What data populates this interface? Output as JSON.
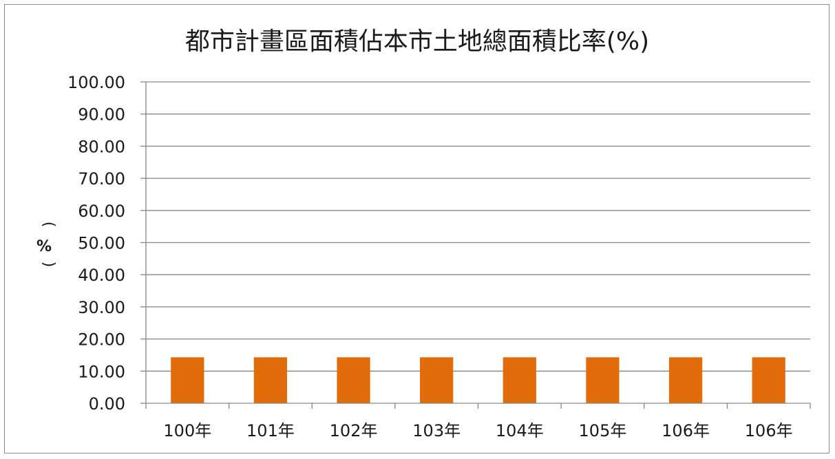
{
  "chart_data": {
    "type": "bar",
    "title": "都市計畫區面積佔本市土地總面積比率(%)",
    "ylabel": "%",
    "xlabel": "",
    "categories": [
      "100年",
      "101年",
      "102年",
      "103年",
      "104年",
      "105年",
      "106年",
      "106年"
    ],
    "values": [
      14.3,
      14.3,
      14.3,
      14.3,
      14.3,
      14.3,
      14.3,
      14.3
    ],
    "ylim": [
      0,
      100
    ],
    "yticks": [
      "0.00",
      "10.00",
      "20.00",
      "30.00",
      "40.00",
      "50.00",
      "60.00",
      "70.00",
      "80.00",
      "90.00",
      "100.00"
    ],
    "grid": true,
    "legend": "none",
    "bar_color": "#e36c0a",
    "grid_color": "#868686",
    "axis_color": "#868686"
  }
}
